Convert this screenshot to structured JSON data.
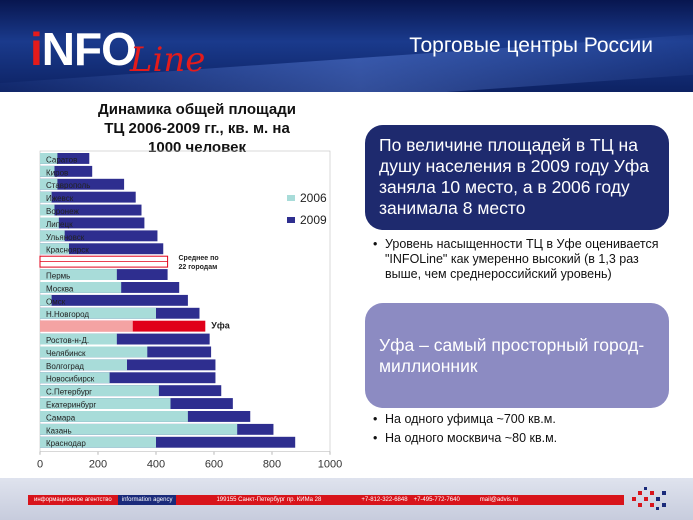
{
  "header": {
    "logo_i": "i",
    "logo_nfo": "NFO",
    "logo_line": "Line",
    "title": "Торговые центры России"
  },
  "colors": {
    "series_2006": "#a8dcd9",
    "series_2009": "#2e2e8f",
    "highlight_ufa_2006": "#f4a3a3",
    "highlight_ufa_2009": "#e0001a",
    "box_dark": "#1e2a6e",
    "box_light": "#8c8bc2"
  },
  "chart_data": {
    "type": "bar",
    "orientation": "horizontal",
    "title": "Динамика общей площади ТЦ 2006-2009 гг., кв. м. на 1000 человек",
    "categories": [
      "Саратов",
      "Киров",
      "Ставрополь",
      "Ижевск",
      "Воронеж",
      "Липецк",
      "Ульяновск",
      "Красноярск",
      "Среднее по 22 городам",
      "Пермь",
      "Москва",
      "Омск",
      "Н.Новгород",
      "Уфа",
      "Ростов-н-Д.",
      "Челябинск",
      "Волгоград",
      "Новосибирск",
      "С.Петербург",
      "Екатеринбург",
      "Самара",
      "Казань",
      "Краснодар"
    ],
    "series": [
      {
        "name": "2006",
        "values": [
          60,
          50,
          60,
          40,
          50,
          65,
          85,
          100,
          250,
          265,
          280,
          40,
          400,
          320,
          265,
          370,
          300,
          240,
          410,
          450,
          510,
          680,
          400
        ]
      },
      {
        "name": "2009",
        "values": [
          170,
          180,
          290,
          330,
          350,
          360,
          405,
          425,
          440,
          440,
          480,
          510,
          550,
          570,
          585,
          590,
          605,
          605,
          625,
          665,
          725,
          805,
          880
        ]
      }
    ],
    "xlim": [
      0,
      1000
    ],
    "xticks": [
      "0",
      "200",
      "400",
      "600",
      "800",
      "1000"
    ],
    "legend": [
      "2006",
      "2009"
    ],
    "legend_position": "right",
    "annotations": {
      "average": "Среднее по 22 городам",
      "ufa": "Уфа"
    }
  },
  "chart_title_lines": [
    "Динамика общей площади",
    "ТЦ 2006-2009 гг., кв. м. на",
    "1000 человек"
  ],
  "box1": "По величине площадей в ТЦ на душу населения в 2009 году Уфа заняла 10 место, а в 2006 году занимала 8 место",
  "bullets1": [
    "Уровень насыщенности ТЦ в Уфе оценивается \"INFOLine\" как умеренно высокий (в 1,3 раз выше, чем среднероссийский уровень)"
  ],
  "box2": "Уфа – самый просторный город-миллионник",
  "bullets2": [
    "На одного уфимца ~700 кв.м.",
    "На одного москвича ~80 кв.м."
  ],
  "footer": {
    "agency": "информационное агентство",
    "agency_en": "information agency",
    "address": "199155 Санкт-Петербург пр. КИМа 28",
    "phone1": "+7-812-322-6848",
    "phone2": "+7-495-772-7640",
    "email": "mail@advis.ru"
  }
}
